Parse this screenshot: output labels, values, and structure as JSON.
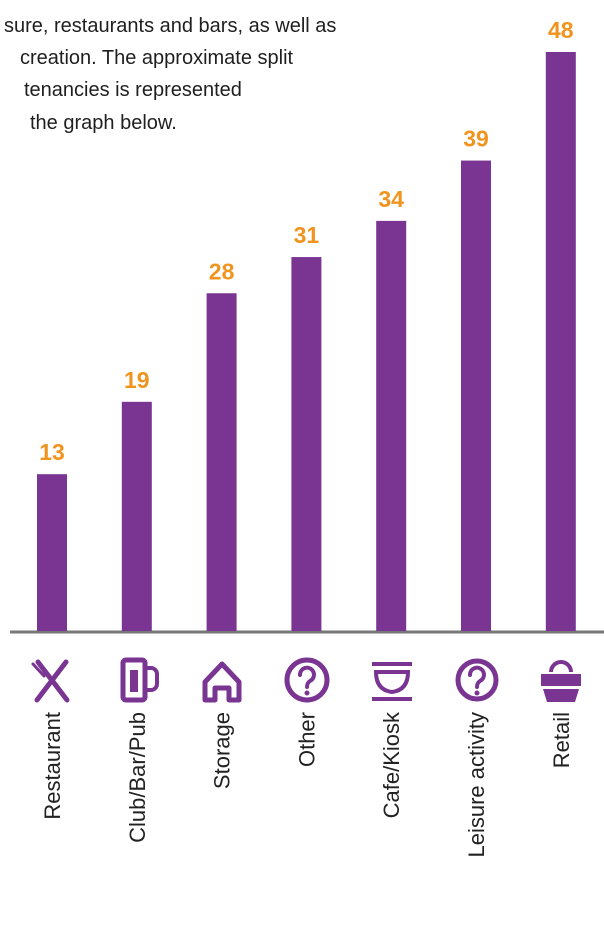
{
  "chart_data": {
    "type": "bar",
    "text_lines": [
      "sure, restaurants and bars, as well as",
      "creation. The approximate split",
      "tenancies is represented",
      "the graph below."
    ],
    "categories": [
      "Restaurant",
      "Club/Bar/Pub",
      "Storage",
      "Other",
      "Cafe/Kiosk",
      "Leisure activity",
      "Retail"
    ],
    "values": [
      13,
      19,
      28,
      31,
      34,
      39,
      48
    ],
    "color": "#7a3592",
    "label_color": "#f0941f"
  }
}
